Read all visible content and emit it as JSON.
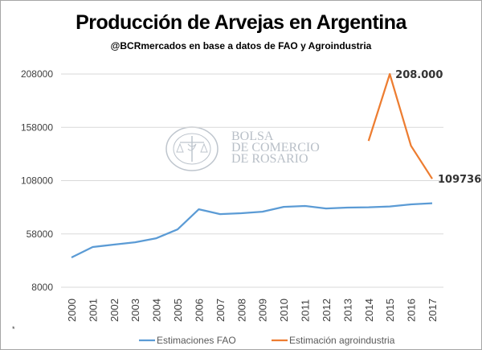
{
  "title": "Producción de Arvejas en Argentina",
  "subtitle": "@BCRmercados  en base a datos de FAO y Agroindustria",
  "watermark": {
    "lines": [
      "BOLSA",
      "DE COMERCIO",
      "DE ROSARIO"
    ],
    "seal_text": "BOLSA DE COMERCIO DE ROSARIO"
  },
  "footnote": "*",
  "chart_data": {
    "type": "line",
    "title": "Producción de Arvejas en Argentina",
    "subtitle": "@BCRmercados  en base a datos de FAO y Agroindustria",
    "xlabel": "",
    "ylabel": "",
    "categories": [
      "2000",
      "2001",
      "2002",
      "2003",
      "2004",
      "2005",
      "2006",
      "2007",
      "2008",
      "2009",
      "2010",
      "2011",
      "2012",
      "2013",
      "2014",
      "2015",
      "2016",
      "2017"
    ],
    "ylim": [
      8000,
      208000
    ],
    "yticks": [
      8000,
      58000,
      108000,
      158000,
      208000
    ],
    "ytick_labels": [
      "8000",
      "58000",
      "108000",
      "158000",
      "208000"
    ],
    "grid": true,
    "legend_position": "bottom",
    "series": [
      {
        "name": "Estimaciones FAO",
        "color": "#5b9bd5",
        "values": [
          35900,
          45700,
          48000,
          50200,
          54000,
          62300,
          81100,
          76600,
          77400,
          78900,
          83400,
          84200,
          81900,
          82700,
          83000,
          83800,
          85700,
          86800
        ]
      },
      {
        "name": "Estimación agroindustria",
        "color": "#ed7d31",
        "values": [
          null,
          null,
          null,
          null,
          null,
          null,
          null,
          null,
          null,
          null,
          null,
          null,
          null,
          null,
          145300,
          208000,
          140700,
          109736
        ]
      }
    ],
    "annotations": [
      {
        "category": "2015",
        "series": "Estimación agroindustria",
        "text": "208.000"
      },
      {
        "category": "2017",
        "series": "Estimación agroindustria",
        "text": "109736"
      }
    ]
  }
}
